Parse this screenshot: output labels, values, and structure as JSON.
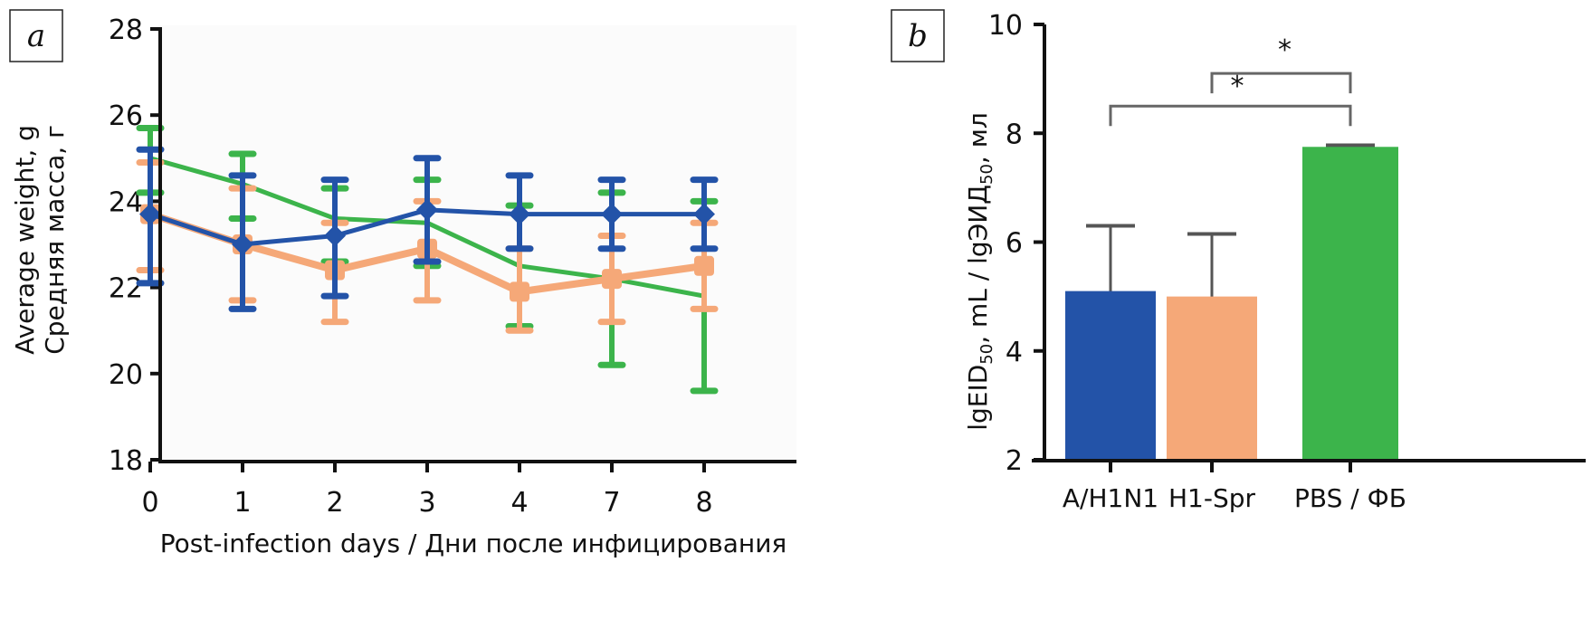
{
  "chart_data": [
    {
      "panel": "a",
      "type": "line",
      "title": "",
      "xlabel": "Post-infection days / Дни после инфицирования",
      "ylabel_lines": [
        "Average weight, g",
        "Средняя масса, г"
      ],
      "ylim": [
        18,
        28
      ],
      "yticks": [
        "18",
        "20",
        "22",
        "24",
        "26",
        "28"
      ],
      "categories": [
        "0",
        "1",
        "2",
        "3",
        "4",
        "7",
        "8"
      ],
      "grid": false,
      "series": [
        {
          "name": "PBS",
          "color": "#3cb44b",
          "values": [
            25.0,
            24.4,
            23.6,
            23.5,
            22.5,
            22.2,
            21.8
          ],
          "err_low": [
            24.2,
            23.6,
            22.6,
            22.5,
            21.1,
            20.2,
            19.6
          ],
          "err_high": [
            25.7,
            25.1,
            24.3,
            24.5,
            23.9,
            24.2,
            24.0
          ]
        },
        {
          "name": "H1-Spr",
          "color": "#f5a878",
          "values": [
            23.7,
            23.0,
            22.4,
            22.9,
            21.9,
            22.2,
            22.5
          ],
          "err_low": [
            22.4,
            21.7,
            21.2,
            21.7,
            21.0,
            21.2,
            21.5
          ],
          "err_high": [
            24.9,
            24.3,
            23.5,
            24.0,
            22.9,
            23.2,
            23.5
          ]
        },
        {
          "name": "A/H1N1",
          "color": "#2353a8",
          "values": [
            23.7,
            23.0,
            23.2,
            23.8,
            23.7,
            23.7,
            23.7
          ],
          "err_low": [
            22.1,
            21.5,
            21.8,
            22.6,
            22.9,
            22.9,
            22.9
          ],
          "err_high": [
            25.2,
            24.6,
            24.5,
            25.0,
            24.6,
            24.5,
            24.5
          ]
        }
      ]
    },
    {
      "panel": "b",
      "type": "bar",
      "title": "",
      "xlabel": "",
      "ylabel": "lgEID50, mL / lgЭИД50, мл",
      "ylabel_parts": [
        "lgEID",
        "50",
        ", mL / lgЭИД",
        "50",
        ", мл"
      ],
      "ylim": [
        2,
        10
      ],
      "yticks": [
        "2",
        "4",
        "6",
        "8",
        "10"
      ],
      "categories": [
        "A/H1N1",
        "H1-Spr",
        "PBS / ФБ"
      ],
      "values": [
        5.1,
        5.0,
        7.75
      ],
      "err_high": [
        6.3,
        6.15,
        7.78
      ],
      "colors": [
        "#2353a8",
        "#f5a878",
        "#3cb44b"
      ],
      "grid": false,
      "significance": [
        {
          "from": "A/H1N1",
          "to": "PBS / ФБ",
          "label": "*",
          "level": 8.5
        },
        {
          "from": "H1-Spr",
          "to": "PBS / ФБ",
          "label": "*",
          "level": 9.1
        }
      ]
    }
  ],
  "panel_labels": [
    "a",
    "b"
  ]
}
